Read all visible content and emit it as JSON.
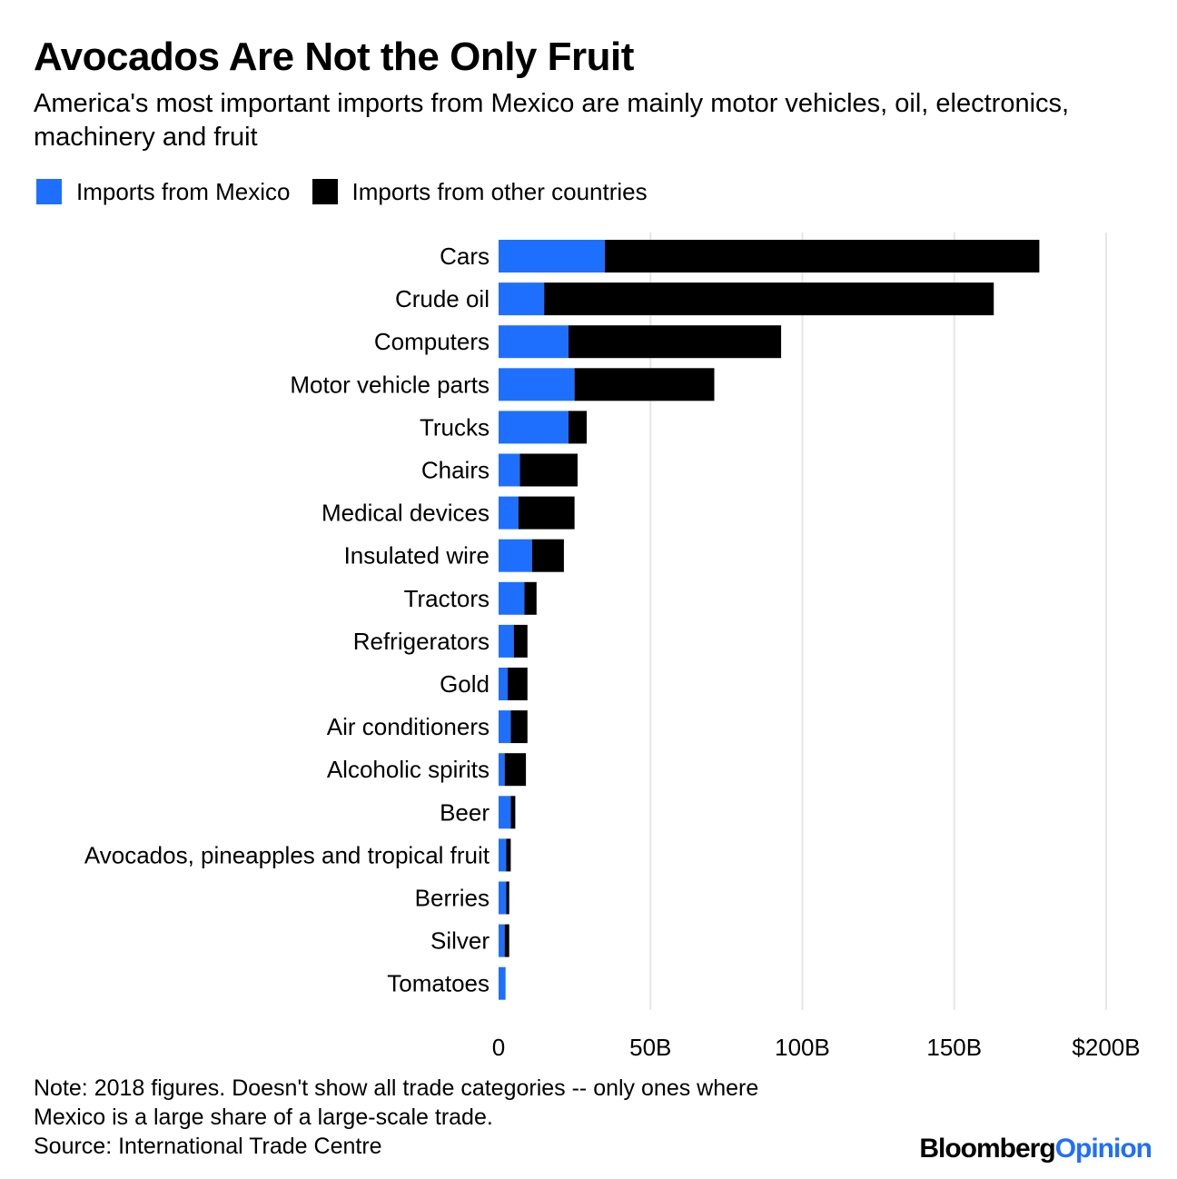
{
  "title": "Avocados Are Not the Only Fruit",
  "subtitle": "America's most important imports from Mexico are mainly motor vehicles, oil, electronics, machinery and fruit",
  "note": {
    "line1": "Note: 2018 figures. Doesn't show all trade categories -- only ones where",
    "line2": "Mexico is a large share of a large-scale trade.",
    "source": "Source: International Trade Centre"
  },
  "logo": {
    "brand": "Bloomberg",
    "section": "Opinion"
  },
  "colors": {
    "mexico": "#1f6fff",
    "other": "#000000",
    "grid": "#e6e6e6"
  },
  "chart_data": {
    "type": "bar",
    "orientation": "horizontal",
    "stacked": true,
    "categories": [
      "Cars",
      "Crude oil",
      "Computers",
      "Motor vehicle parts",
      "Trucks",
      "Chairs",
      "Medical devices",
      "Insulated wire",
      "Tractors",
      "Refrigerators",
      "Gold",
      "Air conditioners",
      "Alcoholic spirits",
      "Beer",
      "Avocados, pineapples and tropical fruit",
      "Berries",
      "Silver",
      "Tomatoes"
    ],
    "series": [
      {
        "name": "Imports from Mexico",
        "values": [
          35,
          15,
          23,
          25,
          23,
          7,
          6.5,
          11,
          8.5,
          5,
          3,
          4,
          2,
          4,
          2.5,
          2.5,
          2,
          2.3
        ]
      },
      {
        "name": "Imports from other countries",
        "values": [
          143,
          148,
          70,
          46,
          6,
          19,
          18.5,
          10.5,
          4,
          4.5,
          6.5,
          5.5,
          7,
          1.5,
          1.5,
          1,
          1.5,
          0
        ]
      }
    ],
    "xlim": [
      0,
      200
    ],
    "xticks": [
      0,
      50,
      100,
      150,
      200
    ],
    "xtick_labels": [
      "0",
      "50B",
      "100B",
      "150B",
      "$200B"
    ],
    "grid": true,
    "legend": "top-left"
  }
}
